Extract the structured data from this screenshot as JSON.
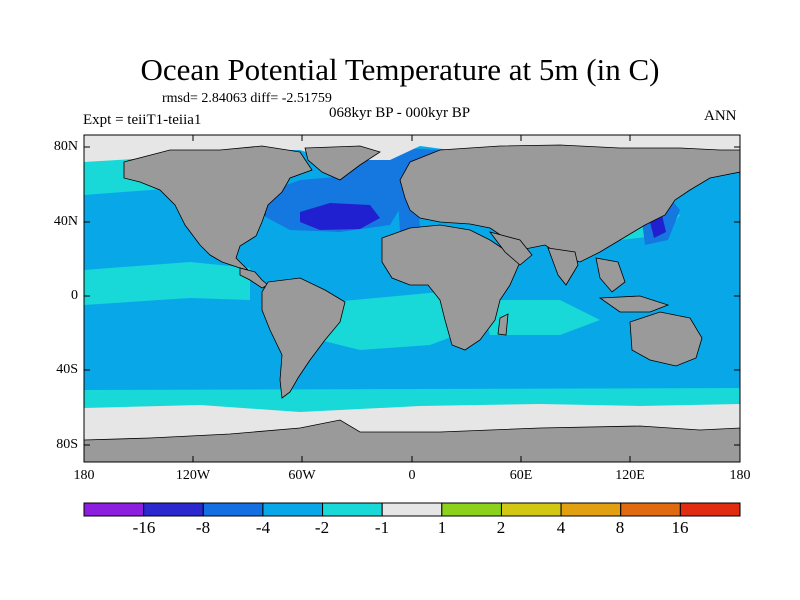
{
  "map": {
    "title": "Ocean Potential Temperature at 5m (in C)",
    "stats": "rmsd= 2.84063 diff= -2.51759",
    "experiment": "Expt = teiiT1-teiia1",
    "period": "068kyr BP - 000kyr BP",
    "season": "ANN",
    "lat_labels": [
      "80N",
      "40N",
      "0",
      "40S",
      "80S"
    ],
    "lon_labels": [
      "180",
      "120W",
      "60W",
      "0",
      "60E",
      "120E",
      "180"
    ],
    "colors": {
      "land": "#9a9a9a",
      "sea_ice": "#e6e6e6",
      "ocean_cool": "#08a8e8",
      "ocean_slight": "#18d8d8",
      "ocean_cold": "#1478e0",
      "ocean_coldest": "#2020d0"
    }
  },
  "colorbar": {
    "levels": [
      "-16",
      "-8",
      "-4",
      "-2",
      "-1",
      "1",
      "2",
      "4",
      "8",
      "16"
    ],
    "colors": [
      "#8c1ee0",
      "#2c28d0",
      "#1470e0",
      "#08a8e8",
      "#18d8d8",
      "#e6e6e6",
      "#8cd21c",
      "#d2c814",
      "#e0a010",
      "#e06a10",
      "#e02c10"
    ]
  }
}
